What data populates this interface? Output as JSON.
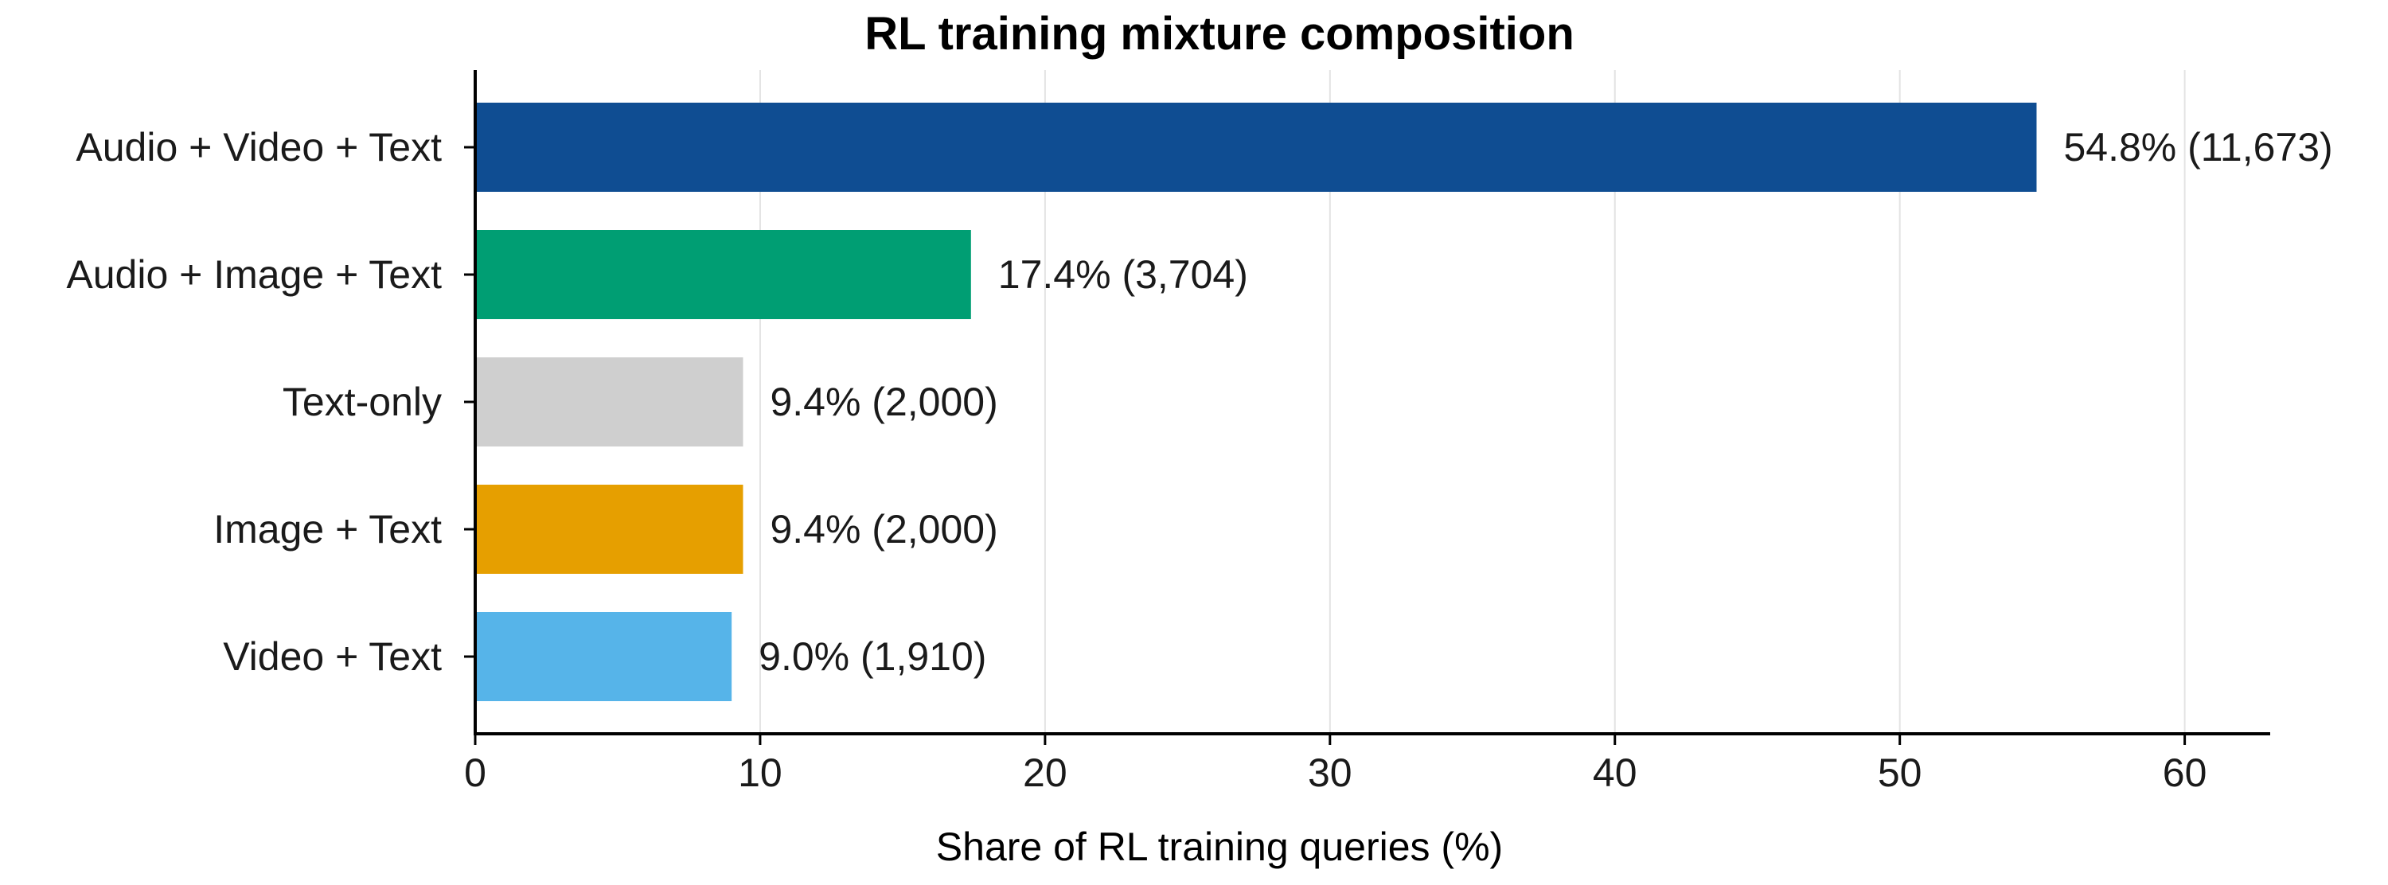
{
  "chart_data": {
    "type": "bar",
    "orientation": "horizontal",
    "title": "RL training mixture composition",
    "xlabel": "Share of RL training queries (%)",
    "ylabel": "",
    "xlim": [
      0,
      63
    ],
    "xticks": [
      0,
      10,
      20,
      30,
      40,
      50,
      60
    ],
    "grid": "vertical",
    "categories": [
      "Audio + Video + Text",
      "Audio + Image + Text",
      "Text-only",
      "Image + Text",
      "Video + Text"
    ],
    "values": [
      54.8,
      17.4,
      9.4,
      9.4,
      9.0
    ],
    "counts": [
      11673,
      3704,
      2000,
      2000,
      1910
    ],
    "data_labels": [
      "54.8%  (11,673)",
      "17.4%  (3,704)",
      "9.4%  (2,000)",
      "9.4%  (2,000)",
      "9.0%  (1,910)"
    ],
    "colors": [
      "#0f4d92",
      "#009e73",
      "#cfcfcf",
      "#e69f00",
      "#56b4e9"
    ]
  }
}
